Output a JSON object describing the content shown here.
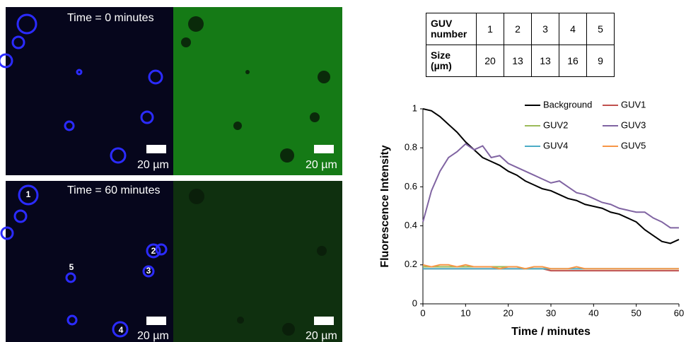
{
  "images": {
    "panels": [
      {
        "time": "Time = 0 minutes",
        "scale_bars": [
          "20 µm",
          "20 µm"
        ]
      },
      {
        "time": "Time = 60 minutes",
        "scale_bars": [
          "20 µm",
          "20 µm"
        ]
      }
    ],
    "guv_labels": [
      "1",
      "2",
      "3",
      "4",
      "5"
    ]
  },
  "table": {
    "rows": [
      [
        "GUV number",
        "1",
        "2",
        "3",
        "4",
        "5"
      ],
      [
        "Size (µm)",
        "20",
        "13",
        "13",
        "16",
        "9"
      ]
    ]
  },
  "chart_data": {
    "type": "line",
    "x_label": "Time / minutes",
    "y_label": "Fluorescence Intensity",
    "x": [
      0,
      2,
      4,
      6,
      8,
      10,
      12,
      14,
      16,
      18,
      20,
      22,
      24,
      26,
      28,
      30,
      32,
      34,
      36,
      38,
      40,
      42,
      44,
      46,
      48,
      50,
      52,
      54,
      56,
      58,
      60
    ],
    "xlim": [
      0,
      60
    ],
    "xticks": [
      0,
      10,
      20,
      30,
      40,
      50,
      60
    ],
    "ylim": [
      0,
      1
    ],
    "yticks": [
      0,
      0.2,
      0.4,
      0.6,
      0.8,
      1
    ],
    "series": [
      {
        "name": "Background",
        "color": "#000000",
        "values": [
          1.0,
          0.99,
          0.96,
          0.92,
          0.88,
          0.83,
          0.79,
          0.75,
          0.73,
          0.71,
          0.68,
          0.66,
          0.63,
          0.61,
          0.59,
          0.58,
          0.56,
          0.54,
          0.53,
          0.51,
          0.5,
          0.49,
          0.47,
          0.46,
          0.44,
          0.42,
          0.38,
          0.35,
          0.32,
          0.31,
          0.33
        ]
      },
      {
        "name": "GUV1",
        "color": "#c0504d",
        "values": [
          0.18,
          0.18,
          0.18,
          0.18,
          0.18,
          0.18,
          0.18,
          0.18,
          0.18,
          0.18,
          0.18,
          0.18,
          0.18,
          0.18,
          0.18,
          0.17,
          0.17,
          0.17,
          0.17,
          0.17,
          0.17,
          0.17,
          0.17,
          0.17,
          0.17,
          0.17,
          0.17,
          0.17,
          0.17,
          0.17,
          0.17
        ]
      },
      {
        "name": "GUV2",
        "color": "#9bbb59",
        "values": [
          0.19,
          0.19,
          0.19,
          0.19,
          0.19,
          0.19,
          0.19,
          0.19,
          0.19,
          0.19,
          0.19,
          0.19,
          0.18,
          0.18,
          0.18,
          0.18,
          0.18,
          0.18,
          0.18,
          0.18,
          0.18,
          0.18,
          0.18,
          0.18,
          0.18,
          0.18,
          0.18,
          0.18,
          0.18,
          0.18,
          0.18
        ]
      },
      {
        "name": "GUV3",
        "color": "#8064a2",
        "values": [
          0.42,
          0.58,
          0.68,
          0.75,
          0.78,
          0.82,
          0.79,
          0.81,
          0.75,
          0.76,
          0.72,
          0.7,
          0.68,
          0.66,
          0.64,
          0.62,
          0.63,
          0.6,
          0.57,
          0.56,
          0.54,
          0.52,
          0.51,
          0.49,
          0.48,
          0.47,
          0.47,
          0.44,
          0.42,
          0.39,
          0.39
        ]
      },
      {
        "name": "GUV4",
        "color": "#4bacc6",
        "values": [
          0.18,
          0.18,
          0.18,
          0.18,
          0.18,
          0.18,
          0.18,
          0.18,
          0.18,
          0.18,
          0.18,
          0.18,
          0.18,
          0.18,
          0.18,
          0.18,
          0.18,
          0.18,
          0.18,
          0.18,
          0.18,
          0.18,
          0.18,
          0.18,
          0.18,
          0.18,
          0.18,
          0.18,
          0.18,
          0.18,
          0.18
        ]
      },
      {
        "name": "GUV5",
        "color": "#f79646",
        "values": [
          0.2,
          0.19,
          0.2,
          0.2,
          0.19,
          0.2,
          0.19,
          0.19,
          0.19,
          0.18,
          0.19,
          0.19,
          0.18,
          0.19,
          0.19,
          0.18,
          0.18,
          0.18,
          0.19,
          0.18,
          0.18,
          0.18,
          0.18,
          0.18,
          0.18,
          0.18,
          0.18,
          0.18,
          0.18,
          0.18,
          0.18
        ]
      }
    ]
  }
}
